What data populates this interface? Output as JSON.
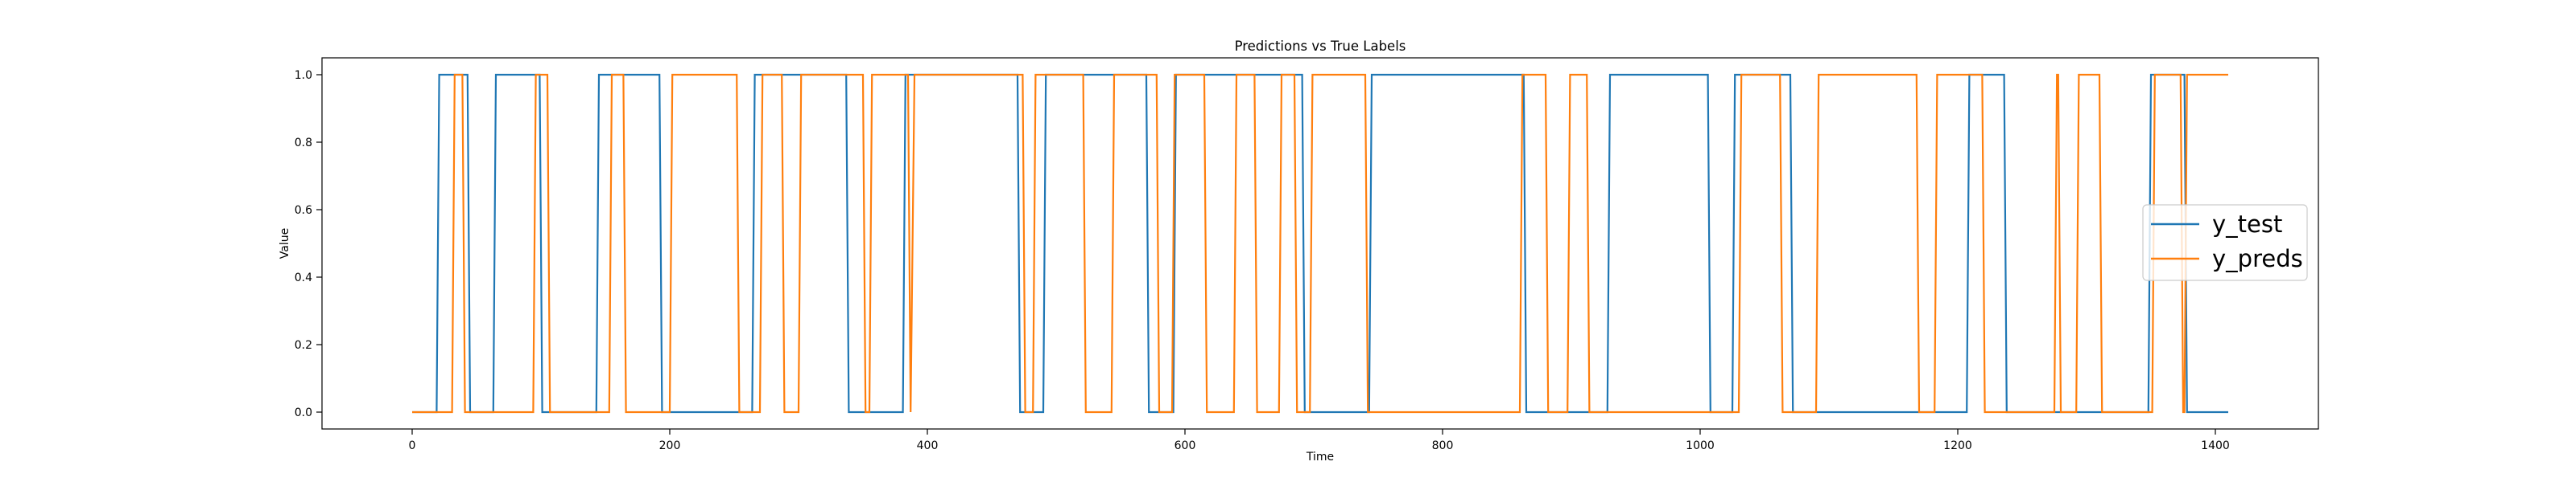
{
  "chart_data": {
    "type": "line",
    "title": "Predictions vs True Labels",
    "xlabel": "Time",
    "ylabel": "Value",
    "xlim": [
      -70,
      1480
    ],
    "ylim": [
      -0.05,
      1.05
    ],
    "xticks": [
      0,
      200,
      400,
      600,
      800,
      1000,
      1200,
      1400
    ],
    "yticks": [
      0.0,
      0.2,
      0.4,
      0.6,
      0.8,
      1.0
    ],
    "grid": false,
    "legend_position": "center-right",
    "series": [
      {
        "name": "y_test",
        "color": "#1f77b4",
        "x": [
          0,
          19,
          21,
          43,
          45,
          63,
          65,
          99,
          101,
          143,
          145,
          192,
          194,
          264,
          266,
          337,
          339,
          381,
          383,
          470,
          472,
          490,
          492,
          570,
          572,
          591,
          593,
          691,
          693,
          743,
          745,
          863,
          865,
          928,
          930,
          1006,
          1008,
          1025,
          1027,
          1070,
          1072,
          1207,
          1209,
          1236,
          1238,
          1348,
          1350,
          1376,
          1378,
          1410
        ],
        "y": [
          0,
          0,
          1,
          1,
          0,
          0,
          1,
          1,
          0,
          0,
          1,
          1,
          0,
          0,
          1,
          1,
          0,
          0,
          1,
          1,
          0,
          0,
          1,
          1,
          0,
          0,
          1,
          1,
          0,
          0,
          1,
          1,
          0,
          0,
          1,
          1,
          0,
          0,
          1,
          1,
          0,
          0,
          1,
          1,
          0,
          0,
          1,
          1,
          0,
          0
        ]
      },
      {
        "name": "y_preds",
        "color": "#ff7f0e",
        "x": [
          0,
          31,
          33,
          39,
          41,
          94,
          96,
          105,
          107,
          153,
          155,
          164,
          166,
          200,
          202,
          252,
          254,
          270,
          272,
          287,
          289,
          300,
          302,
          350,
          352,
          355,
          357,
          385,
          387,
          387,
          390,
          474,
          476,
          482,
          484,
          521,
          523,
          543,
          545,
          578,
          580,
          590,
          592,
          615,
          617,
          638,
          640,
          654,
          656,
          673,
          675,
          685,
          687,
          697,
          699,
          740,
          742,
          860,
          862,
          880,
          882,
          897,
          899,
          912,
          914,
          1030,
          1032,
          1062,
          1064,
          1090,
          1092,
          1168,
          1170,
          1182,
          1184,
          1219,
          1221,
          1275,
          1277,
          1278,
          1280,
          1292,
          1294,
          1310,
          1312,
          1351,
          1353,
          1373,
          1375,
          1376,
          1378,
          1410
        ],
        "y": [
          0,
          0,
          1,
          1,
          0,
          0,
          1,
          1,
          0,
          0,
          1,
          1,
          0,
          0,
          1,
          1,
          0,
          0,
          1,
          1,
          0,
          0,
          1,
          1,
          0,
          0,
          1,
          1,
          0,
          0,
          1,
          1,
          0,
          0,
          1,
          1,
          0,
          0,
          1,
          1,
          0,
          0,
          1,
          1,
          0,
          0,
          1,
          1,
          0,
          0,
          1,
          1,
          0,
          0,
          1,
          1,
          0,
          0,
          1,
          1,
          0,
          0,
          1,
          1,
          0,
          0,
          1,
          1,
          0,
          0,
          1,
          1,
          0,
          0,
          1,
          1,
          0,
          0,
          1,
          1,
          0,
          0,
          1,
          1,
          0,
          0,
          1,
          1,
          0,
          0,
          1,
          1
        ]
      }
    ]
  }
}
